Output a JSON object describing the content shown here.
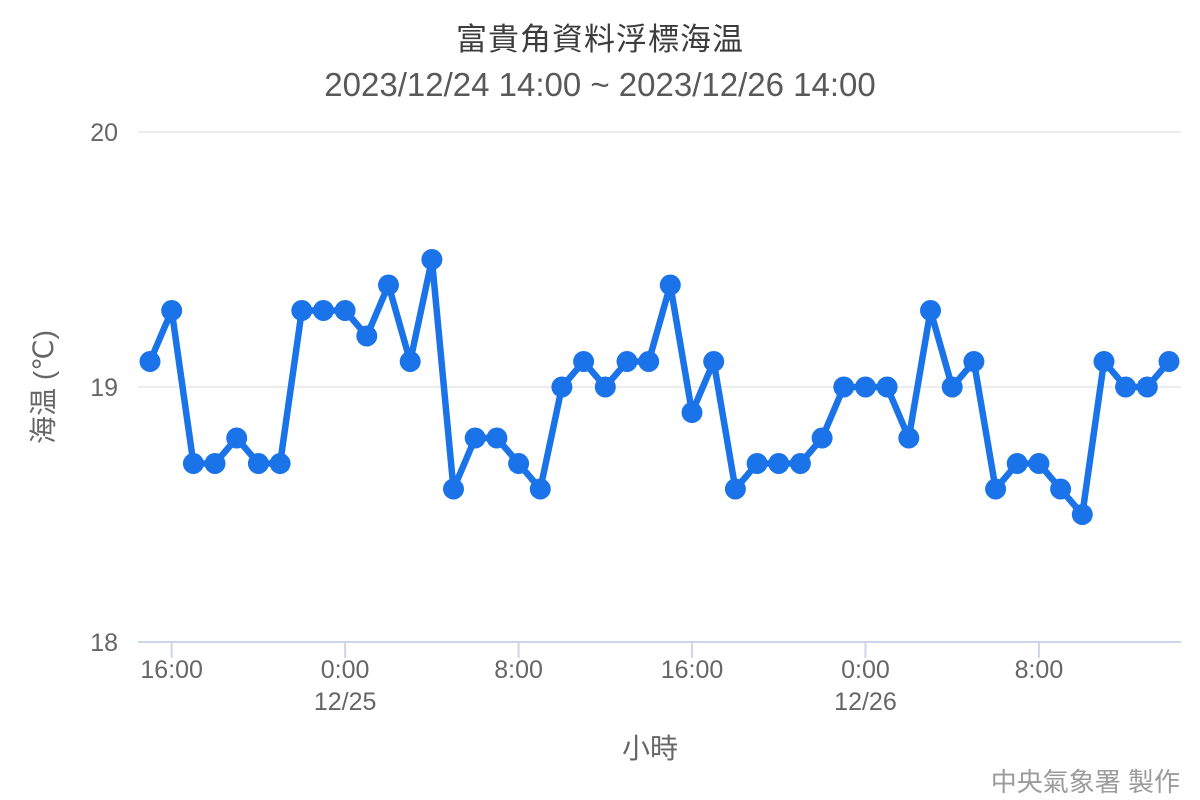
{
  "chart_data": {
    "type": "line",
    "title": "富貴角資料浮標海温",
    "subtitle": "2023/12/24 14:00 ~ 2023/12/26 14:00",
    "xlabel": "小時",
    "ylabel": "海温 (℃)",
    "credits": "中央氣象署 製作",
    "ylim": [
      18,
      20
    ],
    "yticks": [
      18,
      19,
      20
    ],
    "grid": "horizontal-only",
    "legend": "none",
    "x": [
      "12/24 15:00",
      "12/24 16:00",
      "12/24 17:00",
      "12/24 18:00",
      "12/24 19:00",
      "12/24 20:00",
      "12/24 21:00",
      "12/24 22:00",
      "12/24 23:00",
      "12/25 0:00",
      "12/25 1:00",
      "12/25 2:00",
      "12/25 3:00",
      "12/25 4:00",
      "12/25 5:00",
      "12/25 6:00",
      "12/25 7:00",
      "12/25 8:00",
      "12/25 9:00",
      "12/25 10:00",
      "12/25 11:00",
      "12/25 12:00",
      "12/25 13:00",
      "12/25 14:00",
      "12/25 15:00",
      "12/25 16:00",
      "12/25 17:00",
      "12/25 18:00",
      "12/25 19:00",
      "12/25 20:00",
      "12/25 21:00",
      "12/25 22:00",
      "12/25 23:00",
      "12/26 0:00",
      "12/26 1:00",
      "12/26 2:00",
      "12/26 3:00",
      "12/26 4:00",
      "12/26 5:00",
      "12/26 6:00",
      "12/26 7:00",
      "12/26 8:00",
      "12/26 9:00",
      "12/26 10:00",
      "12/26 11:00",
      "12/26 12:00",
      "12/26 13:00",
      "12/26 14:00"
    ],
    "values": [
      19.1,
      19.3,
      18.7,
      18.7,
      18.8,
      18.7,
      18.7,
      19.3,
      19.3,
      19.3,
      19.2,
      19.4,
      19.1,
      19.5,
      18.6,
      18.8,
      18.8,
      18.7,
      18.6,
      19.0,
      19.1,
      19.0,
      19.1,
      19.1,
      19.4,
      18.9,
      19.1,
      18.6,
      18.7,
      18.7,
      18.7,
      18.8,
      19.0,
      19.0,
      19.0,
      18.8,
      19.3,
      19.0,
      19.1,
      18.6,
      18.7,
      18.7,
      18.6,
      18.5,
      19.1,
      19.0,
      19.0,
      19.1
    ],
    "x_ticks": [
      {
        "index": 1,
        "label": "16:00",
        "sublabel": ""
      },
      {
        "index": 9,
        "label": "0:00",
        "sublabel": "12/25"
      },
      {
        "index": 17,
        "label": "8:00",
        "sublabel": ""
      },
      {
        "index": 25,
        "label": "16:00",
        "sublabel": ""
      },
      {
        "index": 33,
        "label": "0:00",
        "sublabel": "12/26"
      },
      {
        "index": 41,
        "label": "8:00",
        "sublabel": ""
      }
    ],
    "colors": {
      "line": "#1a73e8",
      "grid": "#e6e6e6",
      "axis": "#ccd6eb",
      "tick_label": "#666666",
      "title": "#3c3c3c",
      "subtitle": "#595959",
      "credits": "#9b9b9b"
    }
  }
}
